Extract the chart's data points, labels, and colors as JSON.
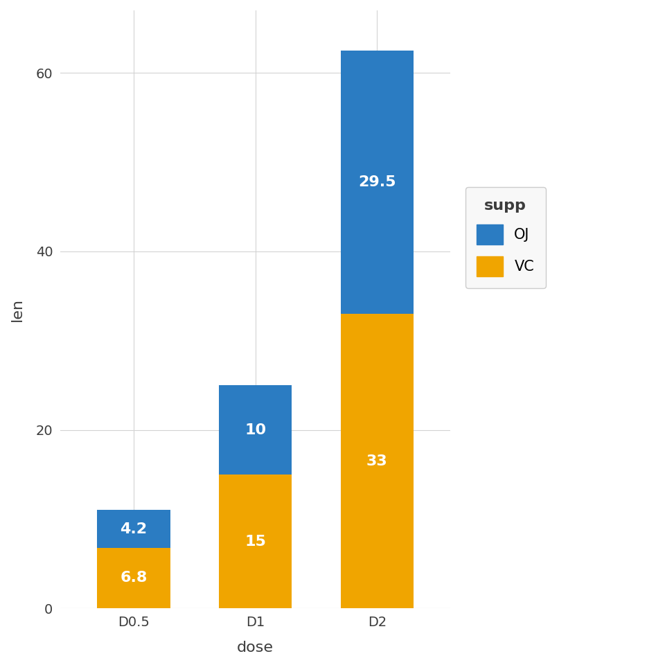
{
  "categories": [
    "D0.5",
    "D1",
    "D2"
  ],
  "vc_values": [
    6.8,
    15.0,
    33.0
  ],
  "oj_values": [
    4.2,
    10.0,
    29.5
  ],
  "vc_color": "#F0A500",
  "oj_color": "#2B7CC2",
  "background_color": "#FFFFFF",
  "panel_background": "#FFFFFF",
  "grid_color": "#D3D3D3",
  "xlabel": "dose",
  "ylabel": "len",
  "legend_title": "supp",
  "bar_width": 0.6,
  "ylim": [
    0,
    67
  ],
  "yticks": [
    0,
    20,
    40,
    60
  ],
  "label_fontsize": 16,
  "tick_fontsize": 14,
  "legend_fontsize": 15,
  "legend_title_fontsize": 16,
  "bar_label_fontsize": 16,
  "bar_label_color": "#FFFFFF",
  "vc_labels": [
    "6.8",
    "15",
    "33"
  ],
  "oj_labels": [
    "4.2",
    "10",
    "29.5"
  ]
}
